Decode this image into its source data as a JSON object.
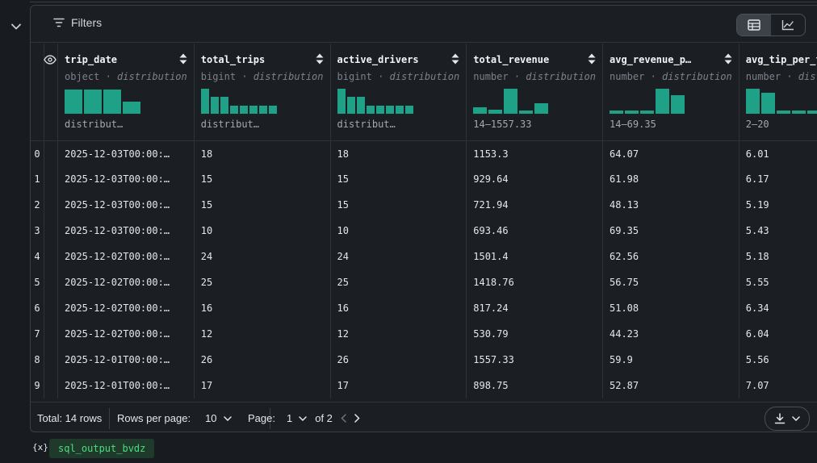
{
  "toolbar": {
    "filters_label": "Filters",
    "view_modes": [
      "table-view",
      "chart-view"
    ],
    "active_view": "table-view"
  },
  "columns": [
    {
      "name": "trip_date",
      "type": "object",
      "type_suffix": "distribution",
      "range": "distribut…",
      "hist": [
        0.9,
        0.9,
        0.9,
        0.45
      ]
    },
    {
      "name": "total_trips",
      "type": "bigint",
      "type_suffix": "distribution",
      "range": "distribut…",
      "hist": [
        0.95,
        0.65,
        0.65,
        0.3,
        0.3,
        0.3,
        0.3,
        0.3
      ]
    },
    {
      "name": "active_drivers",
      "type": "bigint",
      "type_suffix": "distribution",
      "range": "distribut…",
      "hist": [
        0.95,
        0.65,
        0.65,
        0.3,
        0.3,
        0.3,
        0.3,
        0.3
      ]
    },
    {
      "name": "total_revenue",
      "type": "number",
      "type_suffix": "distribution",
      "range": "14–1557.33",
      "hist": [
        0.25,
        0.15,
        0.95,
        0.12,
        0.4
      ]
    },
    {
      "name": "avg_revenue_p…",
      "type": "number",
      "type_suffix": "distribution",
      "range": "14–69.35",
      "hist": [
        0.12,
        0.12,
        0.12,
        0.95,
        0.7
      ]
    },
    {
      "name": "avg_tip_per_t…",
      "type": "number",
      "type_suffix": "distribution",
      "range": "2–20",
      "hist": [
        0.95,
        0.8,
        0.12,
        0.12,
        0.12
      ]
    }
  ],
  "rows": [
    {
      "idx": "0",
      "cells": [
        "2025-12-03T00:00:…",
        "18",
        "18",
        "1153.3",
        "64.07",
        "6.01"
      ]
    },
    {
      "idx": "1",
      "cells": [
        "2025-12-03T00:00:…",
        "15",
        "15",
        "929.64",
        "61.98",
        "6.17"
      ]
    },
    {
      "idx": "2",
      "cells": [
        "2025-12-03T00:00:…",
        "15",
        "15",
        "721.94",
        "48.13",
        "5.19"
      ]
    },
    {
      "idx": "3",
      "cells": [
        "2025-12-03T00:00:…",
        "10",
        "10",
        "693.46",
        "69.35",
        "5.43"
      ]
    },
    {
      "idx": "4",
      "cells": [
        "2025-12-02T00:00:…",
        "24",
        "24",
        "1501.4",
        "62.56",
        "5.18"
      ]
    },
    {
      "idx": "5",
      "cells": [
        "2025-12-02T00:00:…",
        "25",
        "25",
        "1418.76",
        "56.75",
        "5.55"
      ]
    },
    {
      "idx": "6",
      "cells": [
        "2025-12-02T00:00:…",
        "16",
        "16",
        "817.24",
        "51.08",
        "6.34"
      ]
    },
    {
      "idx": "7",
      "cells": [
        "2025-12-02T00:00:…",
        "12",
        "12",
        "530.79",
        "44.23",
        "6.04"
      ]
    },
    {
      "idx": "8",
      "cells": [
        "2025-12-01T00:00:…",
        "26",
        "26",
        "1557.33",
        "59.9",
        "5.56"
      ]
    },
    {
      "idx": "9",
      "cells": [
        "2025-12-01T00:00:…",
        "17",
        "17",
        "898.75",
        "52.87",
        "7.07"
      ]
    }
  ],
  "footer": {
    "total": "Total: 14 rows",
    "rows_per_page_label": "Rows per page:",
    "rows_per_page_value": "10",
    "page_label": "Page:",
    "page_value": "1",
    "page_of": "of 2"
  },
  "variable": {
    "icon_text": "{x}",
    "name": "sql_output_bvdz"
  },
  "colors": {
    "accent": "#1fa187",
    "chip_text": "#4ade80",
    "chip_bg": "#1f3a2a"
  }
}
